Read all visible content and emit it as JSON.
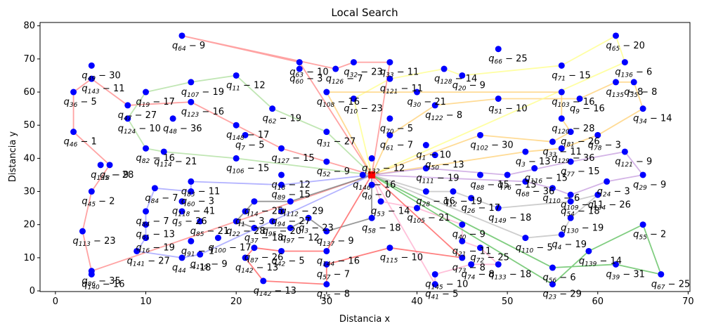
{
  "chart_data": {
    "type": "scatter",
    "title": "Local Search",
    "xlabel": "Distancia x",
    "ylabel": "Distancia y",
    "xlim": [
      -1.7,
      70.2
    ],
    "ylim": [
      -0.2,
      81
    ],
    "xticks": [
      0,
      10,
      20,
      30,
      40,
      50,
      60,
      70
    ],
    "yticks": [
      0,
      10,
      20,
      30,
      40,
      50,
      60,
      70,
      80
    ],
    "grid": false,
    "depot": {
      "x": 35,
      "y": 35
    },
    "point_color": "#0000ff",
    "depot_color": "#ff0000",
    "route_colors": [
      "#ff8c8c",
      "#ffd27a",
      "#ffff8c",
      "#b0e0a0",
      "#c8a0e0",
      "#a0a0ff",
      "#c0c0c0",
      "#ffb0d0",
      "#808080",
      "#ff6060",
      "#60c060"
    ],
    "points": [
      {
        "x": 14,
        "y": 77,
        "label": "q_{64}-9"
      },
      {
        "x": 62,
        "y": 77,
        "label": "q_{65}-20"
      },
      {
        "x": 49,
        "y": 73,
        "label": "q_{66}-25"
      },
      {
        "x": 27,
        "y": 69,
        "label": "q_{63}-10"
      },
      {
        "x": 33,
        "y": 69,
        "label": "q_{32}-23"
      },
      {
        "x": 37,
        "y": 69,
        "label": "q_{33}-11"
      },
      {
        "x": 56,
        "y": 68,
        "label": "q_{71}-15"
      },
      {
        "x": 63,
        "y": 69,
        "label": "q_{136}-6"
      },
      {
        "x": 4,
        "y": 68,
        "label": "q_{49}-30"
      },
      {
        "x": 4,
        "y": 64,
        "label": "q_{143}-11"
      },
      {
        "x": 2,
        "y": 60,
        "label": "q_{36}-5"
      },
      {
        "x": 20,
        "y": 65,
        "label": "q_{11}-12"
      },
      {
        "x": 15,
        "y": 63,
        "label": "q_{107}-19"
      },
      {
        "x": 31,
        "y": 67,
        "label": "q_{126}-7"
      },
      {
        "x": 43,
        "y": 67,
        "label": "q_{128}-14"
      },
      {
        "x": 45,
        "y": 65,
        "label": "q_{20}-9"
      },
      {
        "x": 27,
        "y": 67,
        "label": "q_{60}-3"
      },
      {
        "x": 37,
        "y": 64,
        "label": "q_{121}-11"
      },
      {
        "x": 62,
        "y": 63,
        "label": "q_{135}-8"
      },
      {
        "x": 64,
        "y": 63,
        "label": "q_{35}-8"
      },
      {
        "x": 10,
        "y": 60,
        "label": "q_{19}-17"
      },
      {
        "x": 56,
        "y": 60,
        "label": "q_{103}-16"
      },
      {
        "x": 40,
        "y": 60,
        "label": "q_{30}-21"
      },
      {
        "x": 30,
        "y": 60,
        "label": "q_{108}-16"
      },
      {
        "x": 15,
        "y": 57,
        "label": "q_{123}-16"
      },
      {
        "x": 8,
        "y": 56,
        "label": "q_{47}-27"
      },
      {
        "x": 33,
        "y": 58,
        "label": "q_{10}-23"
      },
      {
        "x": 49,
        "y": 58,
        "label": "q_{51}-10"
      },
      {
        "x": 58,
        "y": 58,
        "label": "q_{9}-16"
      },
      {
        "x": 65,
        "y": 55,
        "label": "q_{34}-14"
      },
      {
        "x": 24,
        "y": 55,
        "label": "q_{62}-19"
      },
      {
        "x": 42,
        "y": 56,
        "label": "q_{122}-8"
      },
      {
        "x": 8,
        "y": 52,
        "label": "q_{124}-10"
      },
      {
        "x": 13,
        "y": 52,
        "label": "q_{48}-36"
      },
      {
        "x": 37,
        "y": 52,
        "label": "q_{70}-5"
      },
      {
        "x": 56,
        "y": 52,
        "label": "q_{120}-28"
      },
      {
        "x": 2,
        "y": 48,
        "label": "q_{46}-1"
      },
      {
        "x": 20,
        "y": 50,
        "label": "q_{148}-17"
      },
      {
        "x": 30,
        "y": 48,
        "label": "q_{31}-27"
      },
      {
        "x": 57,
        "y": 48,
        "label": "q_{81}-26"
      },
      {
        "x": 60,
        "y": 47,
        "label": "q_{78}-3"
      },
      {
        "x": 21,
        "y": 47,
        "label": "q_{7}-5"
      },
      {
        "x": 37,
        "y": 47,
        "label": "q_{61}-7"
      },
      {
        "x": 47,
        "y": 47,
        "label": "q_{102}-30"
      },
      {
        "x": 55,
        "y": 45,
        "label": "q_{33}-11"
      },
      {
        "x": 10,
        "y": 43,
        "label": "q_{82}-16"
      },
      {
        "x": 25,
        "y": 43,
        "label": "q_{127}-15"
      },
      {
        "x": 41,
        "y": 44,
        "label": "q_{1}-10"
      },
      {
        "x": 56,
        "y": 43,
        "label": "q_{129}-36"
      },
      {
        "x": 12,
        "y": 42,
        "label": "q_{114}-21"
      },
      {
        "x": 20,
        "y": 40,
        "label": "q_{106}-15"
      },
      {
        "x": 35,
        "y": 40,
        "label": "q_{132}-12"
      },
      {
        "x": 42,
        "y": 41,
        "label": "q_{50}-13"
      },
      {
        "x": 52,
        "y": 42,
        "label": "q_{3}-13"
      },
      {
        "x": 63,
        "y": 42,
        "label": "q_{121}-9"
      },
      {
        "x": 6,
        "y": 38,
        "label": "q_{8}-9"
      },
      {
        "x": 5,
        "y": 38,
        "label": "q_{125}-28"
      },
      {
        "x": 30,
        "y": 39,
        "label": "q_{52}-9"
      },
      {
        "x": 41,
        "y": 37,
        "label": "q_{111}-19"
      },
      {
        "x": 50,
        "y": 35,
        "label": "q_{76}-13"
      },
      {
        "x": 53,
        "y": 37,
        "label": "q_{116}-15"
      },
      {
        "x": 57,
        "y": 39,
        "label": "q_{77}-15"
      },
      {
        "x": 65,
        "y": 35,
        "label": "q_{29}-9"
      },
      {
        "x": 15,
        "y": 33,
        "label": "q_{83}-11"
      },
      {
        "x": 25,
        "y": 35,
        "label": "q_{18}-12"
      },
      {
        "x": 34,
        "y": 35,
        "label": "q_{146}-16"
      },
      {
        "x": 47,
        "y": 35,
        "label": "q_{88}-15"
      },
      {
        "x": 52,
        "y": 33,
        "label": "q_{68}-36"
      },
      {
        "x": 55,
        "y": 31,
        "label": "q_{110}-6"
      },
      {
        "x": 61,
        "y": 33,
        "label": "q_{24}-3"
      },
      {
        "x": 4,
        "y": 30,
        "label": "q_{45}-2"
      },
      {
        "x": 11,
        "y": 31,
        "label": "q_{84}-7"
      },
      {
        "x": 15,
        "y": 30,
        "label": "q_{60}-3"
      },
      {
        "x": 25,
        "y": 32,
        "label": "q_{89}-15"
      },
      {
        "x": 35,
        "y": 32,
        "label": "q_{0}-0"
      },
      {
        "x": 41,
        "y": 30,
        "label": "q_{28}-16"
      },
      {
        "x": 44,
        "y": 30,
        "label": "q_{12}-19"
      },
      {
        "x": 57,
        "y": 29,
        "label": "q_{109}-11"
      },
      {
        "x": 60,
        "y": 29,
        "label": "q_{134}-26"
      },
      {
        "x": 14,
        "y": 27,
        "label": "q_{118}-41"
      },
      {
        "x": 22,
        "y": 27,
        "label": "q_{14}-25"
      },
      {
        "x": 26,
        "y": 27,
        "label": "q_{112}-29"
      },
      {
        "x": 36,
        "y": 27,
        "label": "q_{53}-14"
      },
      {
        "x": 46,
        "y": 28,
        "label": "q_{26}-17"
      },
      {
        "x": 57,
        "y": 27,
        "label": "q_{54}-18"
      },
      {
        "x": 10,
        "y": 24,
        "label": "q_{84}-7"
      },
      {
        "x": 14,
        "y": 24,
        "label": "q_{5}-26"
      },
      {
        "x": 21,
        "y": 24,
        "label": "q_{1}-3"
      },
      {
        "x": 25,
        "y": 24,
        "label": "q_{94}-27"
      },
      {
        "x": 40,
        "y": 25,
        "label": "q_{105}-21"
      },
      {
        "x": 49,
        "y": 25,
        "label": "q_{149}-18"
      },
      {
        "x": 57,
        "y": 22,
        "label": "q_{130}-19"
      },
      {
        "x": 3,
        "y": 18,
        "label": "q_{113}-23"
      },
      {
        "x": 10,
        "y": 20,
        "label": "q_{61}-13"
      },
      {
        "x": 16,
        "y": 21,
        "label": "q_{85}-21"
      },
      {
        "x": 20,
        "y": 21,
        "label": "q_{22}-28"
      },
      {
        "x": 24,
        "y": 21,
        "label": "q_{95}-20"
      },
      {
        "x": 28,
        "y": 22,
        "label": "q_{3}-23"
      },
      {
        "x": 35,
        "y": 22,
        "label": "q_{58}-18"
      },
      {
        "x": 45,
        "y": 20,
        "label": "q_{40}-9"
      },
      {
        "x": 65,
        "y": 20,
        "label": "q_{55}-2"
      },
      {
        "x": 10,
        "y": 16,
        "label": "q_{16}-19"
      },
      {
        "x": 15,
        "y": 15,
        "label": "q_{91}-1"
      },
      {
        "x": 18,
        "y": 16,
        "label": "q_{100}-17"
      },
      {
        "x": 22,
        "y": 19,
        "label": "q_{37}-18"
      },
      {
        "x": 26,
        "y": 19,
        "label": "q_{97}-12"
      },
      {
        "x": 30,
        "y": 18,
        "label": "q_{137}-9"
      },
      {
        "x": 45,
        "y": 15,
        "label": "q_{21}-11"
      },
      {
        "x": 52,
        "y": 16,
        "label": "q_{110}-5"
      },
      {
        "x": 56,
        "y": 17,
        "label": "q_{4}-19"
      },
      {
        "x": 4,
        "y": 6,
        "label": "q_{86}-35"
      },
      {
        "x": 9,
        "y": 12,
        "label": "q_{141}-27"
      },
      {
        "x": 16,
        "y": 11,
        "label": "q_{119}-9"
      },
      {
        "x": 22,
        "y": 13,
        "label": "q_{87}-26"
      },
      {
        "x": 30,
        "y": 12,
        "label": "q_{144}-16"
      },
      {
        "x": 37,
        "y": 13,
        "label": "q_{115}-10"
      },
      {
        "x": 45,
        "y": 10,
        "label": "q_{73}-8"
      },
      {
        "x": 47,
        "y": 13,
        "label": "q_{72}-25"
      },
      {
        "x": 59,
        "y": 12,
        "label": "q_{139}-14"
      },
      {
        "x": 4,
        "y": 5,
        "label": "q_{140}-16"
      },
      {
        "x": 14,
        "y": 10,
        "label": "q_{44}-18"
      },
      {
        "x": 21,
        "y": 10,
        "label": "q_{142}-13"
      },
      {
        "x": 25,
        "y": 12,
        "label": "q_{42}-5"
      },
      {
        "x": 30,
        "y": 8,
        "label": "q_{57}-7"
      },
      {
        "x": 42,
        "y": 5,
        "label": "q_{145}-10"
      },
      {
        "x": 46,
        "y": 8,
        "label": "q_{74}-8"
      },
      {
        "x": 49,
        "y": 8,
        "label": "q_{133}-18"
      },
      {
        "x": 55,
        "y": 7,
        "label": "q_{56}-6"
      },
      {
        "x": 62,
        "y": 8,
        "label": "q_{39}-31"
      },
      {
        "x": 23,
        "y": 3,
        "label": "q_{142}-13"
      },
      {
        "x": 30,
        "y": 2,
        "label": "q_{15}-8"
      },
      {
        "x": 42,
        "y": 2,
        "label": "q_{41}-5"
      },
      {
        "x": 55,
        "y": 2,
        "label": "q_{23}-29"
      },
      {
        "x": 67,
        "y": 5,
        "label": "q_{67}-25"
      }
    ],
    "routes": [
      [
        [
          35,
          35
        ],
        [
          25,
          43
        ],
        [
          15,
          57
        ],
        [
          8,
          56
        ],
        [
          4,
          64
        ],
        [
          2,
          60
        ],
        [
          2,
          48
        ],
        [
          6,
          38
        ],
        [
          4,
          30
        ],
        [
          3,
          18
        ],
        [
          4,
          6
        ],
        [
          35,
          35
        ]
      ],
      [
        [
          35,
          35
        ],
        [
          37,
          47
        ],
        [
          42,
          56
        ],
        [
          49,
          58
        ],
        [
          58,
          58
        ],
        [
          62,
          63
        ],
        [
          64,
          63
        ],
        [
          65,
          55
        ],
        [
          60,
          47
        ],
        [
          56,
          43
        ],
        [
          52,
          42
        ],
        [
          35,
          35
        ]
      ],
      [
        [
          35,
          35
        ],
        [
          33,
          58
        ],
        [
          37,
          64
        ],
        [
          43,
          67
        ],
        [
          45,
          65
        ],
        [
          56,
          68
        ],
        [
          62,
          77
        ],
        [
          63,
          69
        ],
        [
          35,
          35
        ]
      ],
      [
        [
          35,
          35
        ],
        [
          30,
          48
        ],
        [
          24,
          55
        ],
        [
          20,
          65
        ],
        [
          15,
          63
        ],
        [
          10,
          60
        ],
        [
          8,
          52
        ],
        [
          10,
          43
        ],
        [
          12,
          42
        ],
        [
          20,
          40
        ],
        [
          35,
          35
        ]
      ],
      [
        [
          35,
          35
        ],
        [
          41,
          37
        ],
        [
          50,
          35
        ],
        [
          57,
          39
        ],
        [
          63,
          42
        ],
        [
          65,
          35
        ],
        [
          61,
          33
        ],
        [
          57,
          29
        ],
        [
          55,
          31
        ],
        [
          52,
          33
        ],
        [
          35,
          35
        ]
      ],
      [
        [
          35,
          35
        ],
        [
          25,
          32
        ],
        [
          15,
          33
        ],
        [
          15,
          30
        ],
        [
          11,
          31
        ],
        [
          10,
          24
        ],
        [
          10,
          20
        ],
        [
          10,
          16
        ],
        [
          9,
          12
        ],
        [
          14,
          10
        ],
        [
          16,
          11
        ],
        [
          35,
          35
        ]
      ],
      [
        [
          35,
          35
        ],
        [
          41,
          30
        ],
        [
          44,
          30
        ],
        [
          46,
          28
        ],
        [
          49,
          25
        ],
        [
          57,
          27
        ],
        [
          60,
          29
        ],
        [
          57,
          22
        ],
        [
          56,
          17
        ],
        [
          52,
          16
        ],
        [
          35,
          35
        ]
      ],
      [
        [
          35,
          35
        ],
        [
          36,
          27
        ],
        [
          40,
          25
        ],
        [
          45,
          20
        ],
        [
          45,
          15
        ],
        [
          47,
          13
        ],
        [
          49,
          8
        ],
        [
          46,
          8
        ],
        [
          42,
          5
        ],
        [
          42,
          2
        ],
        [
          35,
          35
        ]
      ],
      [
        [
          35,
          35
        ],
        [
          26,
          27
        ],
        [
          22,
          27
        ],
        [
          21,
          24
        ],
        [
          20,
          21
        ],
        [
          22,
          19
        ],
        [
          26,
          19
        ],
        [
          28,
          22
        ],
        [
          30,
          18
        ],
        [
          35,
          22
        ],
        [
          35,
          35
        ]
      ],
      [
        [
          35,
          35
        ],
        [
          30,
          12
        ],
        [
          25,
          12
        ],
        [
          22,
          13
        ],
        [
          21,
          10
        ],
        [
          23,
          3
        ],
        [
          30,
          2
        ],
        [
          30,
          8
        ],
        [
          37,
          13
        ],
        [
          45,
          10
        ],
        [
          35,
          35
        ]
      ],
      [
        [
          35,
          35
        ],
        [
          55,
          7
        ],
        [
          62,
          8
        ],
        [
          67,
          5
        ],
        [
          65,
          20
        ],
        [
          59,
          12
        ],
        [
          55,
          2
        ],
        [
          35,
          35
        ]
      ],
      [
        [
          35,
          35
        ],
        [
          27,
          69
        ],
        [
          14,
          77
        ],
        [
          31,
          67
        ],
        [
          33,
          69
        ],
        [
          37,
          69
        ],
        [
          35,
          35
        ]
      ],
      [
        [
          35,
          35
        ],
        [
          47,
          47
        ],
        [
          55,
          45
        ],
        [
          57,
          48
        ],
        [
          56,
          52
        ],
        [
          56,
          60
        ],
        [
          40,
          60
        ],
        [
          30,
          60
        ],
        [
          35,
          35
        ]
      ]
    ]
  }
}
